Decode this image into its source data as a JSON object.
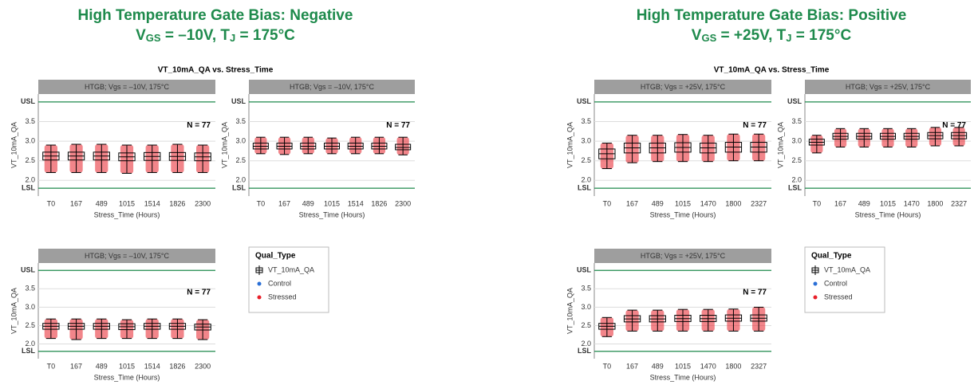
{
  "groups": [
    {
      "title": "High Temperature Gate Bias: Negative",
      "subtitle": [
        "V",
        "GS",
        " = –10V, T",
        "J",
        " = 175°C"
      ],
      "plot_title": "VT_10mA_QA vs. Stress_Time",
      "legend": {
        "title": "Qual_Type",
        "items": [
          "VT_10mA_QA",
          "Control",
          "Stressed"
        ]
      }
    },
    {
      "title": "High Temperature Gate Bias: Positive",
      "subtitle": [
        "V",
        "GS",
        " = +25V, T",
        "J",
        " = 175°C"
      ],
      "plot_title": "VT_10mA_QA vs. Stress_Time",
      "legend": {
        "title": "Qual_Type",
        "items": [
          "VT_10mA_QA",
          "Control",
          "Stressed"
        ]
      }
    }
  ],
  "legend_colors": [
    "#000000",
    "#2a6fd6",
    "#e8202a"
  ],
  "chart_data": [
    {
      "type": "box",
      "facet": "HTGB; Vgs = –10V, 175°C",
      "n_label": "N = 77",
      "ylabel": "VT_10mA_QA",
      "xlabel": "Stress_Time (Hours)",
      "usl": {
        "value": 4.0,
        "label": "USL"
      },
      "lsl": {
        "value": 1.8,
        "label": "LSL"
      },
      "ylim": [
        1.6,
        4.2
      ],
      "yticks": [
        {
          "value": 2,
          "label": "2.0"
        },
        {
          "value": 2.5,
          "label": "2.5"
        },
        {
          "value": 3,
          "label": "3.0"
        },
        {
          "value": 3.5,
          "label": "3.5"
        }
      ],
      "categories": [
        "T0",
        "167",
        "489",
        "1015",
        "1514",
        "1826",
        "2300"
      ],
      "min": [
        2.2,
        2.2,
        2.2,
        2.18,
        2.2,
        2.2,
        2.2
      ],
      "q1": [
        2.52,
        2.52,
        2.52,
        2.5,
        2.51,
        2.51,
        2.5
      ],
      "median": [
        2.62,
        2.62,
        2.62,
        2.6,
        2.61,
        2.61,
        2.6
      ],
      "q3": [
        2.72,
        2.72,
        2.72,
        2.7,
        2.71,
        2.71,
        2.7
      ],
      "max": [
        2.9,
        2.92,
        2.92,
        2.9,
        2.9,
        2.92,
        2.9
      ],
      "box_color": "#000000",
      "point_color": "#e8202a"
    },
    {
      "type": "box",
      "facet": "HTGB; Vgs = –10V, 175°C",
      "n_label": "N = 77",
      "ylabel": "VT_10mA_QA",
      "xlabel": "Stress_Time (Hours)",
      "usl": {
        "value": 4.0,
        "label": "USL"
      },
      "lsl": {
        "value": 1.8,
        "label": "LSL"
      },
      "ylim": [
        1.6,
        4.2
      ],
      "yticks": [
        {
          "value": 2,
          "label": "2.0"
        },
        {
          "value": 2.5,
          "label": "2.5"
        },
        {
          "value": 3,
          "label": "3.0"
        },
        {
          "value": 3.5,
          "label": "3.5"
        }
      ],
      "categories": [
        "T0",
        "167",
        "489",
        "1015",
        "1514",
        "1826",
        "2300"
      ],
      "min": [
        2.68,
        2.66,
        2.68,
        2.68,
        2.68,
        2.68,
        2.65
      ],
      "q1": [
        2.8,
        2.8,
        2.8,
        2.8,
        2.8,
        2.8,
        2.78
      ],
      "median": [
        2.87,
        2.87,
        2.87,
        2.87,
        2.87,
        2.87,
        2.84
      ],
      "q3": [
        2.95,
        2.95,
        2.95,
        2.95,
        2.95,
        2.95,
        2.92
      ],
      "max": [
        3.1,
        3.1,
        3.1,
        3.08,
        3.1,
        3.1,
        3.1
      ],
      "box_color": "#000000",
      "point_color": "#e8202a"
    },
    {
      "type": "box",
      "facet": "HTGB; Vgs = –10V, 175°C",
      "n_label": "N = 77",
      "ylabel": "VT_10mA_QA",
      "xlabel": "Stress_Time (Hours)",
      "usl": {
        "value": 4.0,
        "label": "USL"
      },
      "lsl": {
        "value": 1.8,
        "label": "LSL"
      },
      "ylim": [
        1.6,
        4.2
      ],
      "yticks": [
        {
          "value": 2,
          "label": "2.0"
        },
        {
          "value": 2.5,
          "label": "2.5"
        },
        {
          "value": 3,
          "label": "3.0"
        },
        {
          "value": 3.5,
          "label": "3.5"
        }
      ],
      "categories": [
        "T0",
        "167",
        "489",
        "1015",
        "1514",
        "1826",
        "2300"
      ],
      "min": [
        2.15,
        2.12,
        2.15,
        2.15,
        2.15,
        2.15,
        2.12
      ],
      "q1": [
        2.4,
        2.4,
        2.4,
        2.39,
        2.4,
        2.4,
        2.38
      ],
      "median": [
        2.48,
        2.48,
        2.48,
        2.47,
        2.48,
        2.48,
        2.46
      ],
      "q3": [
        2.56,
        2.56,
        2.56,
        2.55,
        2.56,
        2.56,
        2.54
      ],
      "max": [
        2.68,
        2.68,
        2.68,
        2.66,
        2.68,
        2.68,
        2.66
      ],
      "box_color": "#000000",
      "point_color": "#e8202a"
    },
    {
      "type": "box",
      "facet": "HTGB; Vgs = +25V, 175°C",
      "n_label": "N = 77",
      "ylabel": "VT_10mA_QA",
      "xlabel": "Stress_Time (Hours)",
      "usl": {
        "value": 4.0,
        "label": "USL"
      },
      "lsl": {
        "value": 1.8,
        "label": "LSL"
      },
      "ylim": [
        1.6,
        4.2
      ],
      "yticks": [
        {
          "value": 2,
          "label": "2.0"
        },
        {
          "value": 2.5,
          "label": "2.5"
        },
        {
          "value": 3,
          "label": "3.0"
        },
        {
          "value": 3.5,
          "label": "3.5"
        }
      ],
      "categories": [
        "T0",
        "167",
        "489",
        "1015",
        "1470",
        "1800",
        "2327"
      ],
      "min": [
        2.3,
        2.45,
        2.48,
        2.48,
        2.48,
        2.5,
        2.5
      ],
      "q1": [
        2.55,
        2.7,
        2.7,
        2.72,
        2.7,
        2.72,
        2.72
      ],
      "median": [
        2.68,
        2.83,
        2.83,
        2.84,
        2.83,
        2.85,
        2.85
      ],
      "q3": [
        2.8,
        2.95,
        2.95,
        2.96,
        2.95,
        2.97,
        2.97
      ],
      "max": [
        2.95,
        3.15,
        3.15,
        3.17,
        3.15,
        3.18,
        3.18
      ],
      "box_color": "#000000",
      "point_color": "#e8202a"
    },
    {
      "type": "box",
      "facet": "HTGB; Vgs = +25V, 175°C",
      "n_label": "N = 77",
      "ylabel": "VT_10mA_QA",
      "xlabel": "Stress_Time (Hours)",
      "usl": {
        "value": 4.0,
        "label": "USL"
      },
      "lsl": {
        "value": 1.8,
        "label": "LSL"
      },
      "ylim": [
        1.6,
        4.2
      ],
      "yticks": [
        {
          "value": 2,
          "label": "2.0"
        },
        {
          "value": 2.5,
          "label": "2.5"
        },
        {
          "value": 3,
          "label": "3.0"
        },
        {
          "value": 3.5,
          "label": "3.5"
        }
      ],
      "categories": [
        "T0",
        "167",
        "489",
        "1015",
        "1470",
        "1800",
        "2327"
      ],
      "min": [
        2.7,
        2.85,
        2.85,
        2.85,
        2.85,
        2.88,
        2.88
      ],
      "q1": [
        2.9,
        3.05,
        3.05,
        3.05,
        3.05,
        3.06,
        3.06
      ],
      "median": [
        2.97,
        3.12,
        3.12,
        3.12,
        3.12,
        3.14,
        3.14
      ],
      "q3": [
        3.05,
        3.2,
        3.2,
        3.2,
        3.2,
        3.22,
        3.22
      ],
      "max": [
        3.15,
        3.32,
        3.32,
        3.32,
        3.32,
        3.35,
        3.35
      ],
      "box_color": "#000000",
      "point_color": "#e8202a"
    },
    {
      "type": "box",
      "facet": "HTGB; Vgs = +25V, 175°C",
      "n_label": "N = 77",
      "ylabel": "VT_10mA_QA",
      "xlabel": "Stress_Time (Hours)",
      "usl": {
        "value": 4.0,
        "label": "USL"
      },
      "lsl": {
        "value": 1.8,
        "label": "LSL"
      },
      "ylim": [
        1.6,
        4.2
      ],
      "yticks": [
        {
          "value": 2,
          "label": "2.0"
        },
        {
          "value": 2.5,
          "label": "2.5"
        },
        {
          "value": 3,
          "label": "3.0"
        },
        {
          "value": 3.5,
          "label": "3.5"
        }
      ],
      "categories": [
        "T0",
        "167",
        "489",
        "1015",
        "1470",
        "1800",
        "2327"
      ],
      "min": [
        2.2,
        2.35,
        2.35,
        2.35,
        2.35,
        2.35,
        2.35
      ],
      "q1": [
        2.4,
        2.6,
        2.6,
        2.61,
        2.61,
        2.62,
        2.62
      ],
      "median": [
        2.48,
        2.68,
        2.68,
        2.69,
        2.69,
        2.7,
        2.7
      ],
      "q3": [
        2.56,
        2.77,
        2.77,
        2.78,
        2.78,
        2.79,
        2.79
      ],
      "max": [
        2.72,
        2.92,
        2.92,
        2.94,
        2.94,
        2.95,
        3.0
      ],
      "box_color": "#000000",
      "point_color": "#e8202a"
    }
  ]
}
